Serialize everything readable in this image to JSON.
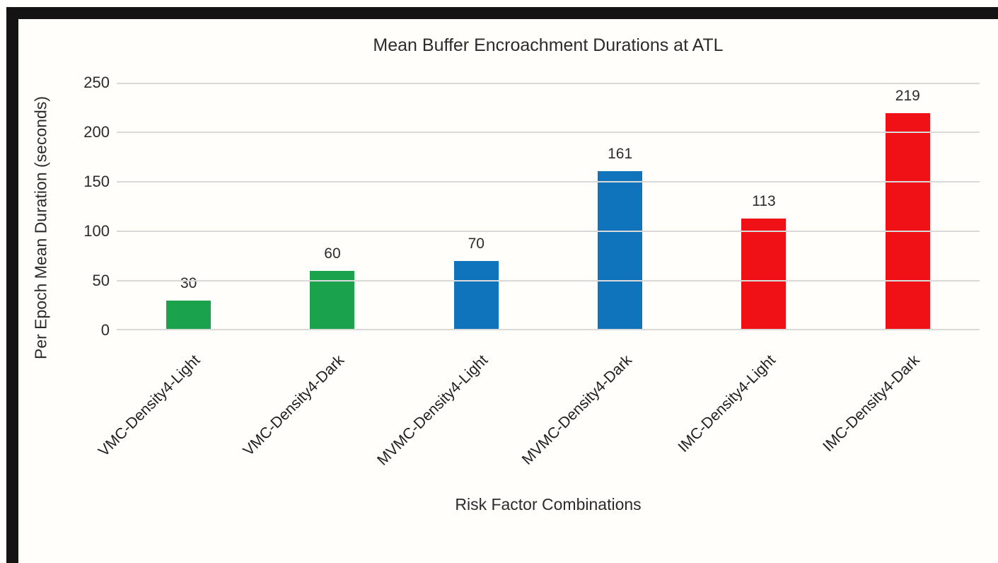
{
  "chart": {
    "title": "Mean Buffer Encroachment Durations at ATL",
    "y_axis_label": "Per Epoch Mean Duration (seconds)",
    "x_axis_label": "Risk Factor Combinations"
  },
  "decor": {
    "edge_bar_color": "#141414",
    "gridline_color": "#d9d9d9",
    "background_color": "#fffefb"
  },
  "chart_data": {
    "type": "bar",
    "title": "Mean Buffer Encroachment Durations at ATL",
    "xlabel": "Risk Factor Combinations",
    "ylabel": "Per Epoch Mean Duration (seconds)",
    "categories": [
      "VMC-Density4-Light",
      "VMC-Density4-Dark",
      "MVMC-Density4-Light",
      "MVMC-Density4-Dark",
      "IMC-Density4-Light",
      "IMC-Density4-Dark"
    ],
    "values": [
      30,
      60,
      70,
      161,
      113,
      219
    ],
    "data_labels": [
      "30",
      "60",
      "70",
      "161",
      "113",
      "219"
    ],
    "bar_colors": [
      "#1aa24d",
      "#1aa24d",
      "#1074bc",
      "#1074bc",
      "#ef1116",
      "#ef1116"
    ],
    "y_ticks": [
      0,
      50,
      100,
      150,
      200,
      250
    ],
    "ylim": [
      0,
      250
    ],
    "grid": "horizontal",
    "legend": "none",
    "x_tick_rotation_deg": 45
  }
}
